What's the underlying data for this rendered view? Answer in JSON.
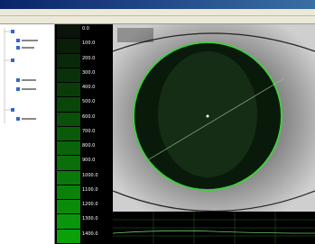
{
  "scale": {
    "labels": [
      "0.0",
      "100.0",
      "200.0",
      "300.0",
      "400.0",
      "500.0",
      "600.0",
      "700.0",
      "800.0",
      "900.0",
      "1000.0",
      "1100.0",
      "1200.0",
      "1300.0",
      "1400.0"
    ]
  }
}
